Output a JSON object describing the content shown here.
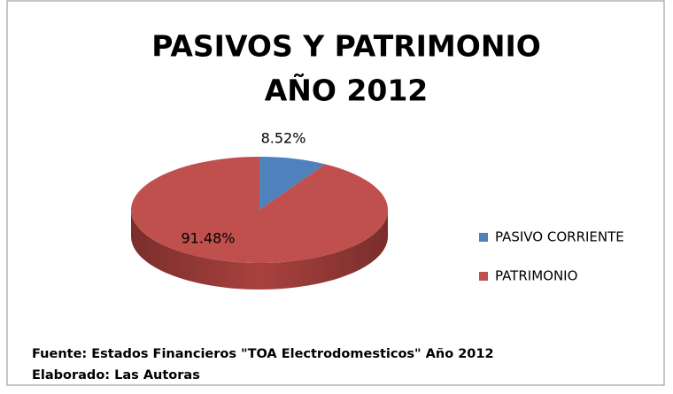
{
  "chart_data": {
    "type": "pie",
    "title": [
      "PASIVOS Y PATRIMONIO",
      "AÑO 2012"
    ],
    "categories": [
      "PASIVO CORRIENTE",
      "PATRIMONIO"
    ],
    "values": [
      8.52,
      91.48
    ],
    "value_labels": [
      "8.52%",
      "91.48%"
    ],
    "colors": [
      "#4f81bd",
      "#c0504d"
    ],
    "legend": "right",
    "notes": [
      "Fuente: Estados  Financieros  \"TOA Electrodomesticos\"  Año 2012",
      "Elaborado:  Las Autoras"
    ]
  }
}
